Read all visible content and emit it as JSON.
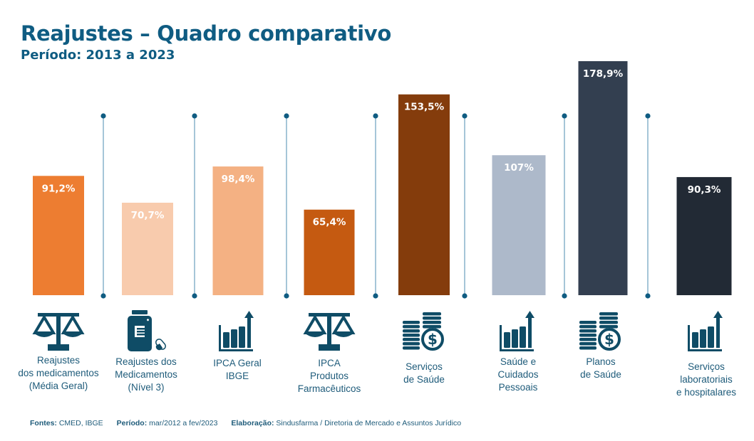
{
  "header": {
    "title": "Reajustes – Quadro comparativo",
    "subtitle": "Período: 2013 a 2023"
  },
  "chart_data": {
    "type": "bar",
    "title": "Reajustes – Quadro comparativo",
    "subtitle": "Período: 2013 a 2023",
    "xlabel": "",
    "ylabel": "",
    "ylim": [
      0,
      180
    ],
    "grid": false,
    "legend": "none",
    "categories": [
      "Reajustes dos medicamentos (Média Geral)",
      "Reajustes dos Medicamentos (Nível 3)",
      "IPCA Geral IBGE",
      "IPCA Produtos Farmacêuticos",
      "Serviços de Saúde",
      "Saúde e Cuidados Pessoais",
      "Planos de Saúde",
      "Serviços laboratoriais e hospitalares"
    ],
    "values": [
      91.2,
      70.7,
      98.4,
      65.4,
      153.5,
      107,
      178.9,
      90.3
    ],
    "value_labels": [
      "91,2%",
      "70,7%",
      "98,4%",
      "65,4%",
      "153,5%",
      "107%",
      "178,9%",
      "90,3%"
    ],
    "colors": [
      "#ed7d31",
      "#f8cbad",
      "#f4b183",
      "#c55a11",
      "#843c0c",
      "#adb9ca",
      "#333f50",
      "#222a35"
    ],
    "label_lines": [
      [
        "Reajustes",
        "dos medicamentos",
        "(Média Geral)"
      ],
      [
        "Reajustes dos",
        "Medicamentos",
        "(Nível 3)"
      ],
      [
        "IPCA Geral",
        "IBGE"
      ],
      [
        "IPCA",
        "Produtos",
        "Farmacêuticos"
      ],
      [
        "Serviços",
        "de Saúde"
      ],
      [
        "Saúde e",
        "Cuidados",
        "Pessoais"
      ],
      [
        "Planos",
        "de Saúde"
      ],
      [
        "Serviços",
        "laboratoriais",
        "e hospitalares"
      ]
    ],
    "icons": [
      "scale-icon",
      "medicine-bottle-icon",
      "growth-chart-icon",
      "scale-icon",
      "coins-dollar-icon",
      "growth-chart-icon",
      "coins-dollar-icon",
      "growth-chart-icon"
    ]
  },
  "colors": {
    "accent": "#0f5c82",
    "divider": "#6a9fbd",
    "icon": "#0f4c66"
  },
  "footer": {
    "sources_label": "Fontes:",
    "sources_value": "CMED, IBGE",
    "period_label": "Período:",
    "period_value": "mar/2012 a fev/2023",
    "made_by_label": "Elaboração:",
    "made_by_value": "Sindusfarma / Diretoria de Mercado e Assuntos Jurídico"
  }
}
